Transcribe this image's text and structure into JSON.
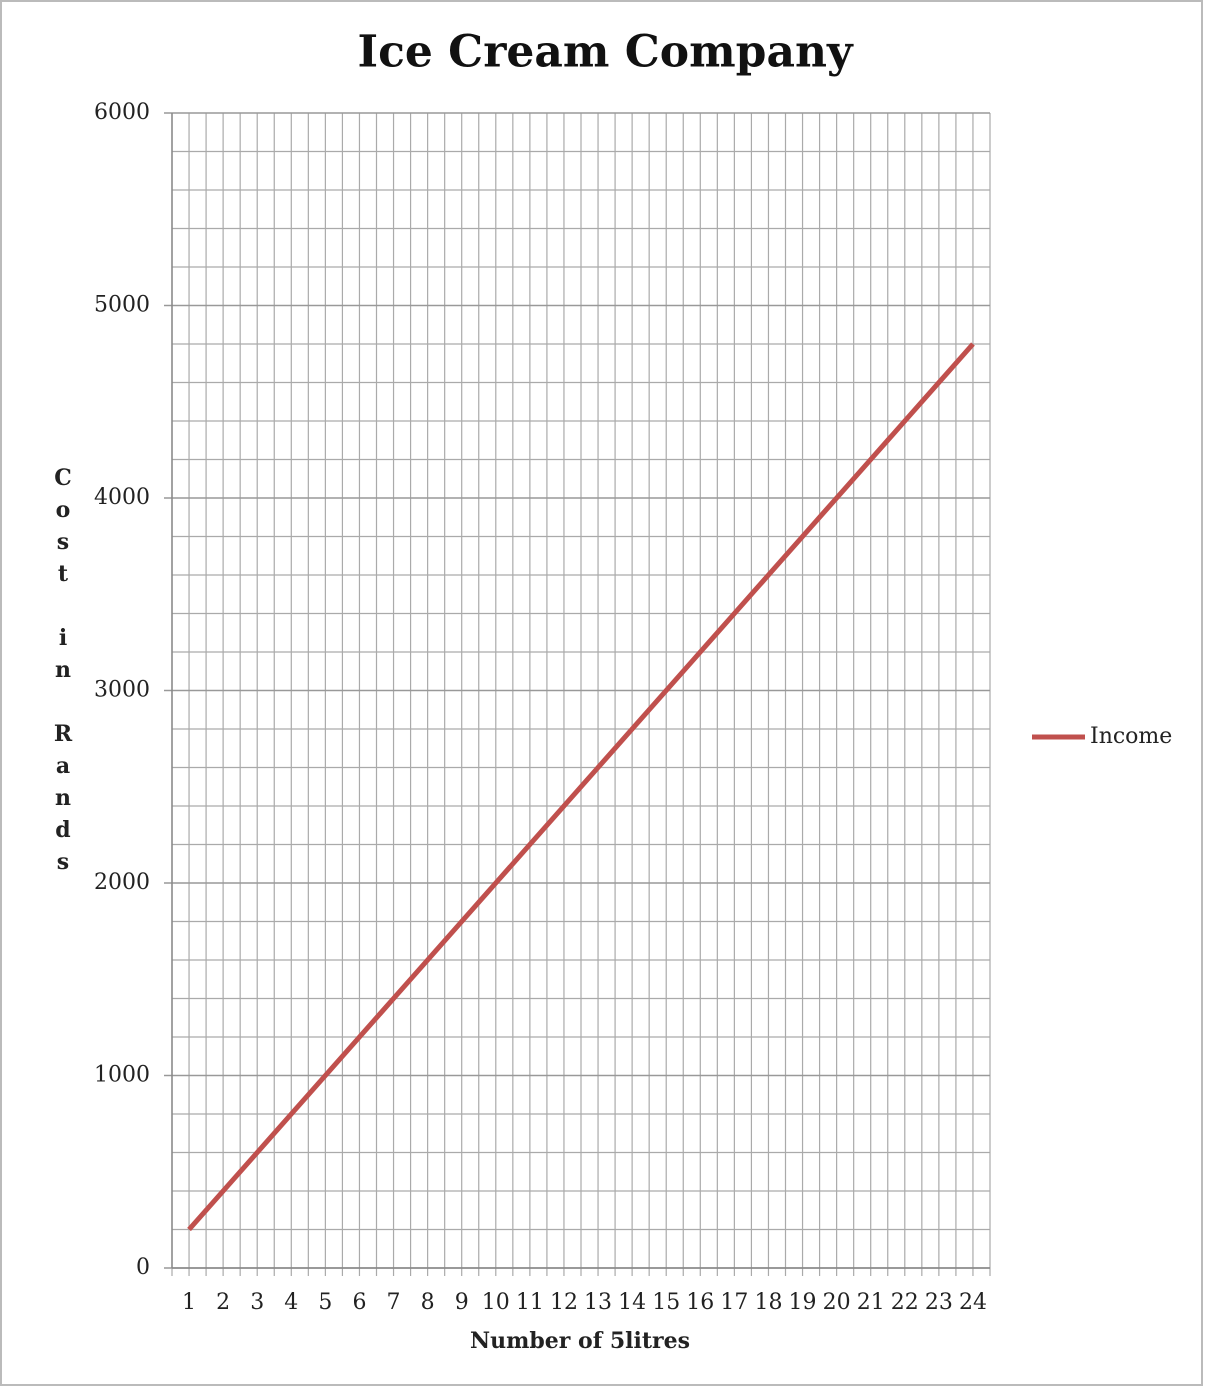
{
  "chart_data": {
    "type": "line",
    "title": "Ice Cream Company",
    "x_label": "Number of 5litres",
    "y_label": "Cost in Rands",
    "categories": [
      "1",
      "2",
      "3",
      "4",
      "5",
      "6",
      "7",
      "8",
      "9",
      "10",
      "11",
      "12",
      "13",
      "14",
      "15",
      "16",
      "17",
      "18",
      "19",
      "20",
      "21",
      "22",
      "23",
      "24"
    ],
    "series": [
      {
        "name": "Income",
        "color": "#c0504d",
        "values": [
          200,
          400,
          600,
          800,
          1000,
          1200,
          1400,
          1600,
          1800,
          2000,
          2200,
          2400,
          2600,
          2800,
          3000,
          3200,
          3400,
          3600,
          3800,
          4000,
          4200,
          4400,
          4600,
          4800
        ]
      }
    ],
    "ylim": [
      0,
      6000
    ],
    "yticks": [
      0,
      1000,
      2000,
      3000,
      4000,
      5000,
      6000
    ],
    "minor_yticks": [
      200,
      400,
      600,
      800,
      1200,
      1400,
      1600,
      1800,
      2200,
      2400,
      2600,
      2800,
      3200,
      3400,
      3600,
      3800,
      4200,
      4400,
      4600,
      4800,
      5200,
      5400,
      5600,
      5800
    ],
    "grid": true,
    "legend": "right"
  }
}
